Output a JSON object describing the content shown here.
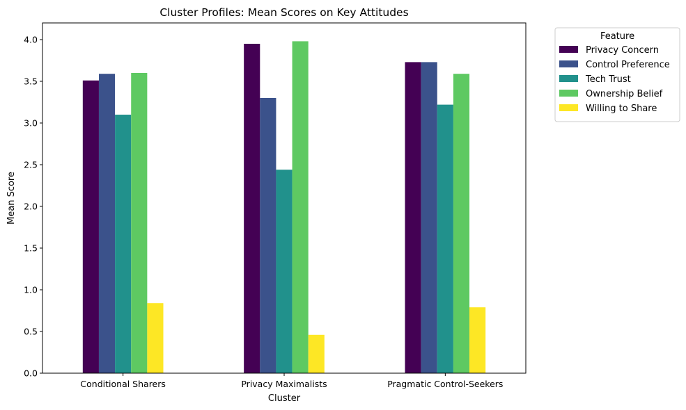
{
  "chart_data": {
    "type": "bar",
    "title": "Cluster Profiles: Mean Scores on Key Attitudes",
    "xlabel": "Cluster",
    "ylabel": "Mean Score",
    "ylim": [
      0,
      4.2
    ],
    "yticks": [
      "0.0",
      "0.5",
      "1.0",
      "1.5",
      "2.0",
      "2.5",
      "3.0",
      "3.5",
      "4.0"
    ],
    "ytick_values": [
      0,
      0.5,
      1.0,
      1.5,
      2.0,
      2.5,
      3.0,
      3.5,
      4.0
    ],
    "categories": [
      "Conditional Sharers",
      "Privacy Maximalists",
      "Pragmatic Control-Seekers"
    ],
    "grid": false,
    "legend": {
      "title": "Feature",
      "placement": "outside-right-top"
    },
    "series": [
      {
        "name": "Privacy Concern",
        "color": "#440154",
        "values": [
          3.51,
          3.95,
          3.73
        ]
      },
      {
        "name": "Control Preference",
        "color": "#3b528b",
        "values": [
          3.59,
          3.3,
          3.73
        ]
      },
      {
        "name": "Tech Trust",
        "color": "#21918c",
        "values": [
          3.1,
          2.44,
          3.22
        ]
      },
      {
        "name": "Ownership Belief",
        "color": "#5ec962",
        "values": [
          3.6,
          3.98,
          3.59
        ]
      },
      {
        "name": "Willing to Share",
        "color": "#fde725",
        "values": [
          0.84,
          0.46,
          0.79
        ]
      }
    ]
  }
}
